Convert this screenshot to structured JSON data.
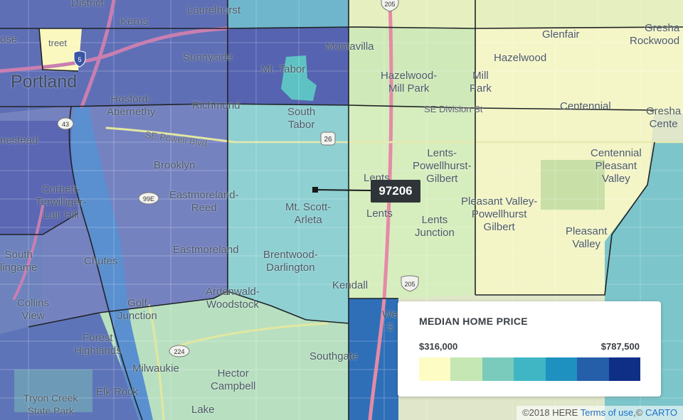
{
  "zip_label": "97206",
  "legend": {
    "title": "MEDIAN HOME PRICE",
    "min_label": "$316,000",
    "max_label": "$787,500",
    "colors": [
      "#fdfcc4",
      "#c4e7b4",
      "#7acbbb",
      "#40b6c5",
      "#1f91c0",
      "#255ea9",
      "#0f2f86"
    ]
  },
  "attribution": {
    "prefix": "©2018 HERE",
    "terms": "Terms of use",
    "sep": ",©",
    "carto": "CARTO"
  },
  "places": [
    {
      "id": "district",
      "text": "District"
    },
    {
      "id": "laurelhurst",
      "text": "Laurelhurst"
    },
    {
      "id": "kerns",
      "text": "Kerns"
    },
    {
      "id": "rose-city",
      "text": "ose"
    },
    {
      "id": "street",
      "text": "treet"
    },
    {
      "id": "sunnyside",
      "text": "Sunnyside"
    },
    {
      "id": "portland",
      "text": "Portland"
    },
    {
      "id": "mt-tabor",
      "text": "Mt. Tabor"
    },
    {
      "id": "montavilla",
      "text": "Montavilla"
    },
    {
      "id": "glenfair",
      "text": "Glenfair"
    },
    {
      "id": "gresham-north",
      "text": "Gresha"
    },
    {
      "id": "rockwood",
      "text": "Rockwood"
    },
    {
      "id": "hazelwood",
      "text": "Hazelwood"
    },
    {
      "id": "hazelwood-mill-park",
      "text": "Hazelwood-\nMill Park"
    },
    {
      "id": "mill-park",
      "text": "Mill\nPark"
    },
    {
      "id": "hosford-abernethy",
      "text": "Hosford-\nAbernethy"
    },
    {
      "id": "richmond",
      "text": "Richmond"
    },
    {
      "id": "south-tabor",
      "text": "South\nTabor"
    },
    {
      "id": "se-division",
      "text": "SE Division St"
    },
    {
      "id": "centennial-st",
      "text": "Centennial"
    },
    {
      "id": "gresham-center",
      "text": "Gresha\nCente"
    },
    {
      "id": "brooklyn-west",
      "text": "nestead"
    },
    {
      "id": "se-powell",
      "text": "SE Powell Blvd"
    },
    {
      "id": "brooklyn",
      "text": "Brooklyn"
    },
    {
      "id": "lents-powellhurst",
      "text": "Lents-\nPowellhurst-\nGilbert"
    },
    {
      "id": "centennial",
      "text": "Centennial\nPleasant\nValley"
    },
    {
      "id": "corbett",
      "text": "Corbett-\nTerwilliger-\nLair Hill"
    },
    {
      "id": "eastmoreland-reed",
      "text": "Eastmoreland-\nReed"
    },
    {
      "id": "lents-small",
      "text": "Lents"
    },
    {
      "id": "lents",
      "text": "Lents"
    },
    {
      "id": "mt-scott-arleta",
      "text": "Mt. Scott-\nArleta"
    },
    {
      "id": "pleasant-valley-pg",
      "text": "Pleasant Valley-\nPowellhurst\nGilbert"
    },
    {
      "id": "lents-junction",
      "text": "Lents\nJunction"
    },
    {
      "id": "pleasant-valley",
      "text": "Pleasant\nValley"
    },
    {
      "id": "south-burlingame",
      "text": "South\nlingame"
    },
    {
      "id": "eastmoreland",
      "text": "Eastmoreland"
    },
    {
      "id": "chutes",
      "text": "Chutes"
    },
    {
      "id": "brentwood-darlington",
      "text": "Brentwood-\nDarlington"
    },
    {
      "id": "kendall",
      "text": "Kendall"
    },
    {
      "id": "ardenwald",
      "text": "Ardenwald-\nWoodstock"
    },
    {
      "id": "collins-view",
      "text": "Collins\nView"
    },
    {
      "id": "golf-junction",
      "text": "Golf\nJunction"
    },
    {
      "id": "west-partial",
      "text": "We\nS"
    },
    {
      "id": "forest-highlands",
      "text": "Forest\nHighlands"
    },
    {
      "id": "southgate",
      "text": "Southgate"
    },
    {
      "id": "milwaukie",
      "text": "Milwaukie"
    },
    {
      "id": "hector-campbell",
      "text": "Hector\nCampbell"
    },
    {
      "id": "elk-rock",
      "text": "Elk Rock"
    },
    {
      "id": "tryon-creek",
      "text": "Tryon Creek\nState Park"
    },
    {
      "id": "lake",
      "text": "Lake"
    }
  ],
  "shields": [
    {
      "id": "i5",
      "text": "5"
    },
    {
      "id": "i205-top",
      "text": "205"
    },
    {
      "id": "us26",
      "text": "26"
    },
    {
      "id": "i43",
      "text": "43"
    },
    {
      "id": "or99e",
      "text": "99E"
    },
    {
      "id": "or224",
      "text": "224"
    },
    {
      "id": "i205",
      "text": "205"
    }
  ]
}
